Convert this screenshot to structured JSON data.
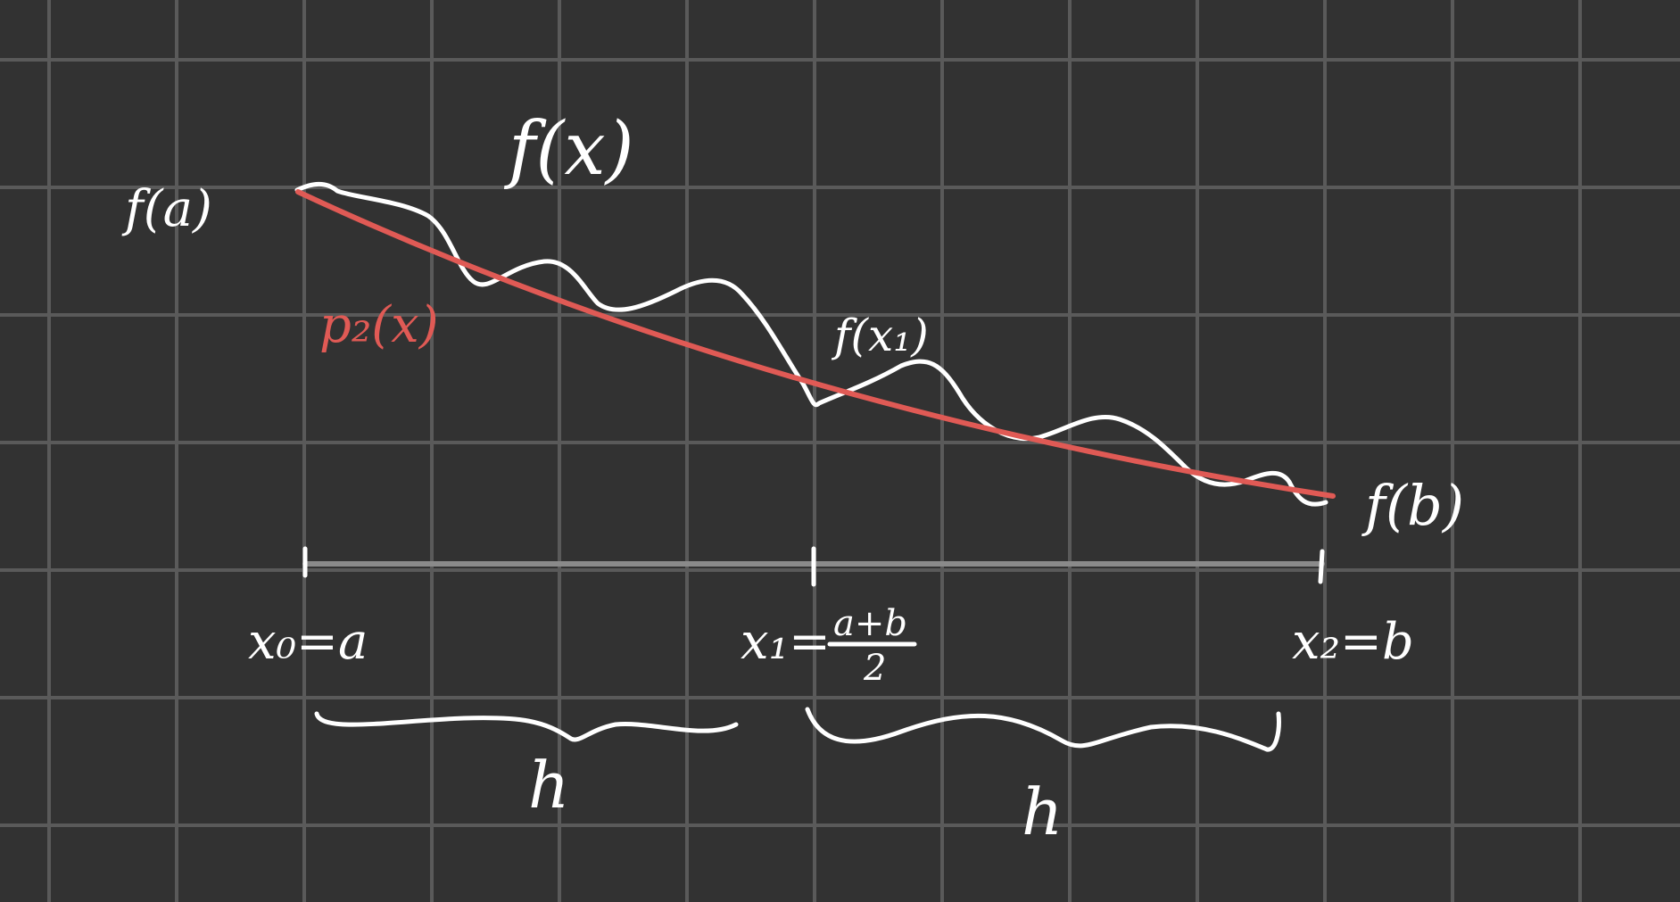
{
  "colors": {
    "background": "#323232",
    "grid": "#5a5a5a",
    "ink": "#ffffff",
    "approximation": "#e05a55",
    "axis": "#8a8a8a"
  },
  "labels": {
    "function": "f(x)",
    "f_a": "f(a)",
    "f_b": "f(b)",
    "f_x1": "f(x₁)",
    "polynomial": "p₂(x)",
    "x0": "x₀=a",
    "x1_lhs": "x₁=",
    "x1_num": "a+b",
    "x1_den": "2",
    "x2": "x₂=b",
    "h_left": "h",
    "h_right": "h"
  }
}
